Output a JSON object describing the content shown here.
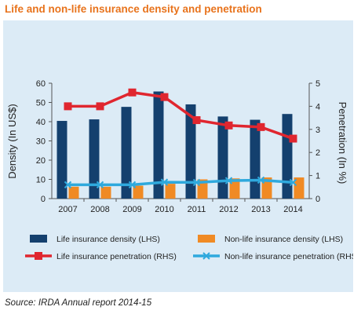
{
  "title": "Life and non-life insurance density and penetration",
  "source": "Source: IRDA Annual report 2014-15",
  "colors": {
    "title": "#e8731c",
    "panel_bg": "#dcebf6",
    "life_density": "#14406e",
    "nonlife_density": "#f08a24",
    "life_penetration": "#e0262f",
    "nonlife_penetration": "#2fa9dd"
  },
  "chart_data": {
    "type": "bar",
    "categories": [
      "2007",
      "2008",
      "2009",
      "2010",
      "2011",
      "2012",
      "2013",
      "2014"
    ],
    "ylabel_left": "Density (In US$)",
    "ylabel_right": "Penetration (In %)",
    "ylim_left": [
      0,
      60
    ],
    "ylim_right": [
      0,
      5
    ],
    "yticks_left": [
      "0",
      "10",
      "20",
      "30",
      "40",
      "50",
      "60"
    ],
    "yticks_right": [
      "0",
      "1",
      "2",
      "3",
      "4",
      "5"
    ],
    "grid": false,
    "legend_position": "bottom",
    "series": [
      {
        "name": "Life insurance density (LHS)",
        "type": "bar",
        "axis": "left",
        "color": "#14406e",
        "values": [
          40.4,
          41.2,
          47.7,
          55.7,
          49.0,
          42.7,
          41.0,
          44.0
        ]
      },
      {
        "name": "Non-life insurance density (LHS)",
        "type": "bar",
        "axis": "left",
        "color": "#f08a24",
        "values": [
          6.2,
          6.2,
          6.7,
          7.7,
          10.0,
          10.5,
          11.0,
          11.0
        ]
      },
      {
        "name": "Life insurance penetration (RHS)",
        "type": "line",
        "marker": "square",
        "axis": "right",
        "color": "#e0262f",
        "values": [
          4.0,
          4.0,
          4.6,
          4.4,
          3.4,
          3.17,
          3.1,
          2.6
        ]
      },
      {
        "name": "Non-life insurance penetration (RHS)",
        "type": "line",
        "marker": "x",
        "axis": "right",
        "color": "#2fa9dd",
        "values": [
          0.6,
          0.6,
          0.6,
          0.71,
          0.7,
          0.78,
          0.8,
          0.7
        ]
      }
    ]
  }
}
